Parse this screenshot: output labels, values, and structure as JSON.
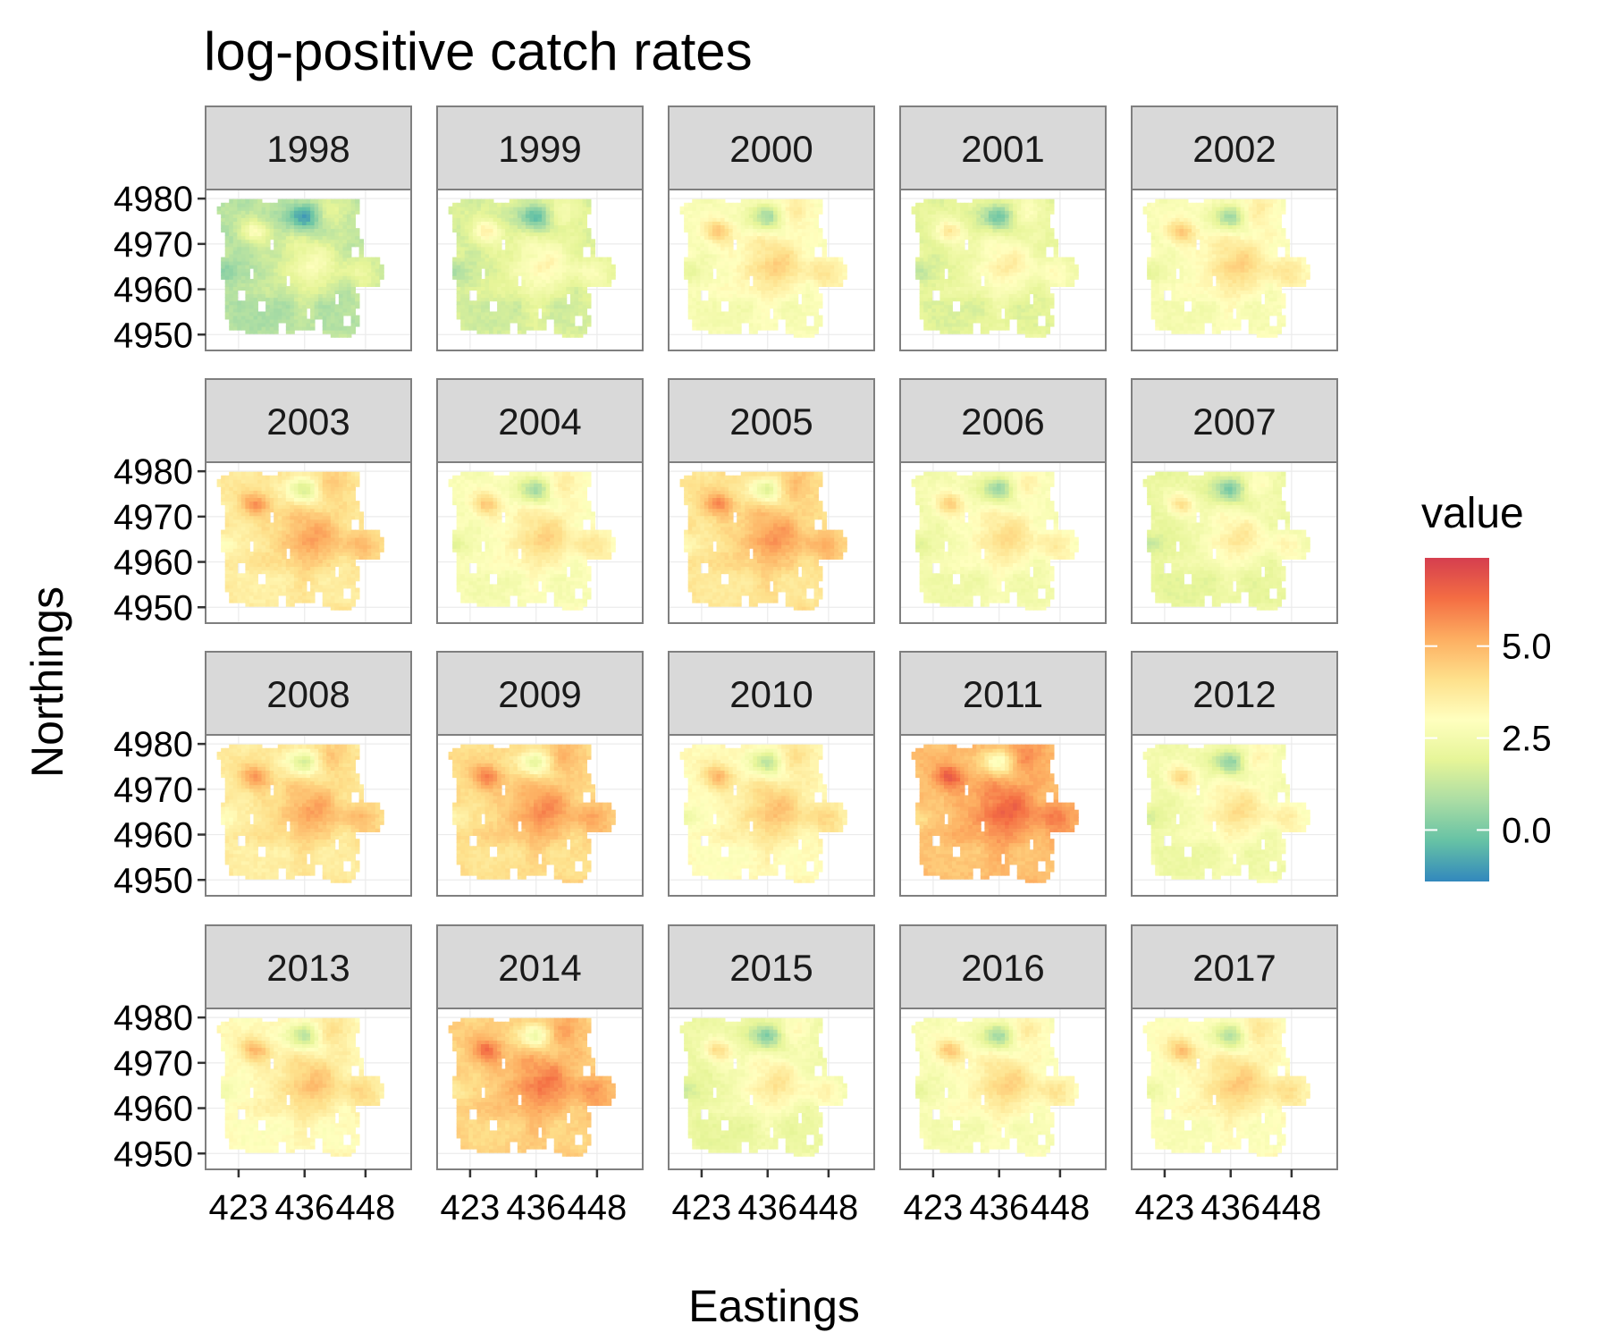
{
  "chart_data": {
    "type": "heatmap",
    "title": "log-positive catch rates",
    "xlabel": "Eastings",
    "ylabel": "Northings",
    "facet_ncol": 5,
    "facets": [
      {
        "label": "1998",
        "level": 1.2
      },
      {
        "label": "1999",
        "level": 1.8
      },
      {
        "label": "2000",
        "level": 2.9
      },
      {
        "label": "2001",
        "level": 2.1
      },
      {
        "label": "2002",
        "level": 2.9
      },
      {
        "label": "2003",
        "level": 3.9
      },
      {
        "label": "2004",
        "level": 2.9
      },
      {
        "label": "2005",
        "level": 4.1
      },
      {
        "label": "2006",
        "level": 2.7
      },
      {
        "label": "2007",
        "level": 2.3
      },
      {
        "label": "2008",
        "level": 3.9
      },
      {
        "label": "2009",
        "level": 4.3
      },
      {
        "label": "2010",
        "level": 3.3
      },
      {
        "label": "2011",
        "level": 5.0
      },
      {
        "label": "2012",
        "level": 2.6
      },
      {
        "label": "2013",
        "level": 3.3
      },
      {
        "label": "2014",
        "level": 4.6
      },
      {
        "label": "2015",
        "level": 2.4
      },
      {
        "label": "2016",
        "level": 2.9
      },
      {
        "label": "2017",
        "level": 3.1
      }
    ],
    "x_ticks": [
      "423",
      "436",
      "448"
    ],
    "x_tick_values": [
      423,
      436,
      448
    ],
    "xlim": [
      416.5,
      457
    ],
    "y_ticks": [
      "4950",
      "4960",
      "4970",
      "4980"
    ],
    "y_tick_values": [
      4950,
      4960,
      4970,
      4980
    ],
    "ylim": [
      4946.5,
      4982
    ],
    "legend": {
      "title": "value",
      "ticks": [
        "0.0",
        "2.5",
        "5.0"
      ],
      "tick_values": [
        0.0,
        2.5,
        5.0
      ],
      "range": [
        -1.4,
        7.4
      ],
      "palette": [
        "#3288bd",
        "#66c2a5",
        "#abdda4",
        "#e6f598",
        "#ffffbf",
        "#fee08b",
        "#fdae61",
        "#f46d43",
        "#d53e4f"
      ]
    },
    "grid": true,
    "legend_position": "right"
  }
}
